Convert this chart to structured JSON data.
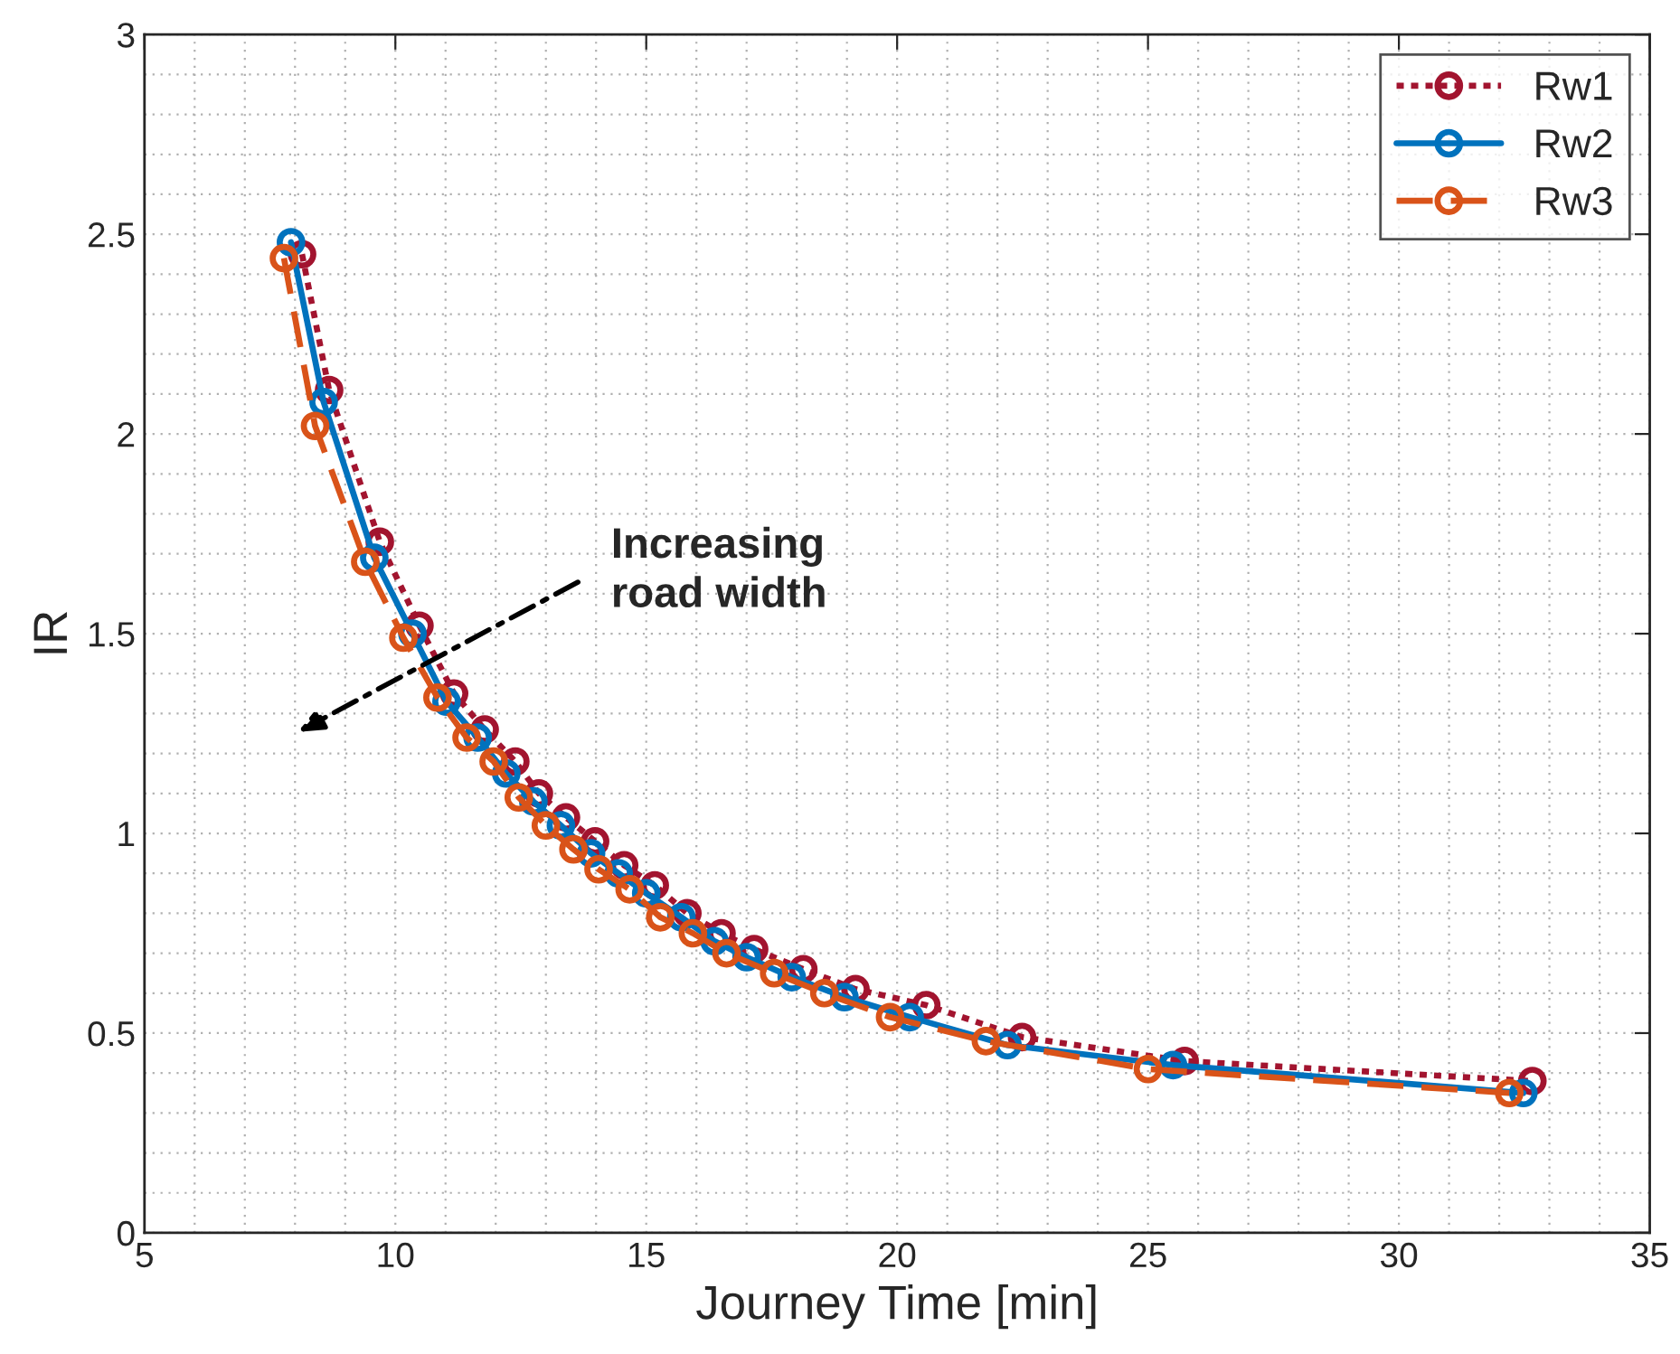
{
  "chart_data": {
    "type": "line",
    "xlabel": "Journey Time [min]",
    "ylabel": "IR",
    "xlim": [
      5,
      35
    ],
    "xticks": [
      5,
      10,
      15,
      20,
      25,
      30,
      35
    ],
    "ylim": [
      0,
      3
    ],
    "yticks": [
      0,
      0.5,
      1,
      1.5,
      2,
      2.5,
      3
    ],
    "grid": true,
    "legend": "top right",
    "marker": "circle",
    "annotations": [
      "Increasing\nroad width"
    ],
    "series": [
      {
        "name": "Rw1",
        "color": "#a2142f",
        "line_style": "dotted",
        "x": [
          8.14,
          8.68,
          9.69,
          10.48,
          11.17,
          11.78,
          12.39,
          12.86,
          13.4,
          13.98,
          14.56,
          15.17,
          15.82,
          16.5,
          17.15,
          18.13,
          19.17,
          20.58,
          22.49,
          25.73,
          32.66
        ],
        "values": [
          2.45,
          2.11,
          1.73,
          1.52,
          1.35,
          1.26,
          1.18,
          1.1,
          1.04,
          0.98,
          0.92,
          0.87,
          0.8,
          0.75,
          0.71,
          0.66,
          0.61,
          0.57,
          0.49,
          0.43,
          0.38
        ]
      },
      {
        "name": "Rw2",
        "color": "#0072bd",
        "line_style": "solid",
        "x": [
          7.92,
          8.57,
          9.58,
          10.34,
          11.02,
          11.64,
          12.21,
          12.75,
          13.3,
          13.9,
          14.45,
          15.0,
          15.7,
          16.36,
          17.0,
          17.9,
          18.95,
          20.25,
          22.2,
          25.5,
          32.48
        ],
        "values": [
          2.48,
          2.08,
          1.69,
          1.5,
          1.33,
          1.24,
          1.15,
          1.08,
          1.02,
          0.95,
          0.9,
          0.85,
          0.79,
          0.73,
          0.69,
          0.64,
          0.59,
          0.54,
          0.47,
          0.42,
          0.35
        ]
      },
      {
        "name": "Rw3",
        "color": "#d95319",
        "line_style": "dashed",
        "x": [
          7.78,
          8.4,
          9.4,
          10.16,
          10.84,
          11.42,
          11.96,
          12.46,
          13.0,
          13.55,
          14.05,
          14.67,
          15.28,
          15.93,
          16.6,
          17.55,
          18.55,
          19.86,
          21.77,
          25.0,
          32.2
        ],
        "values": [
          2.44,
          2.02,
          1.68,
          1.49,
          1.34,
          1.24,
          1.18,
          1.09,
          1.02,
          0.96,
          0.91,
          0.86,
          0.79,
          0.75,
          0.7,
          0.65,
          0.6,
          0.54,
          0.48,
          0.41,
          0.35
        ]
      }
    ]
  }
}
